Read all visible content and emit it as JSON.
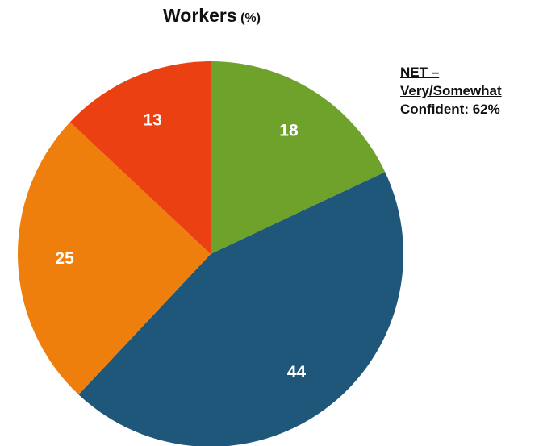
{
  "chart_data": {
    "type": "pie",
    "title": "Workers",
    "title_unit": "(%)",
    "slices": [
      {
        "value": 18,
        "label": "18",
        "color": "#6ea22b"
      },
      {
        "value": 44,
        "label": "44",
        "color": "#1f577b"
      },
      {
        "value": 25,
        "label": "25",
        "color": "#ef7f0c"
      },
      {
        "value": 13,
        "label": "13",
        "color": "#ea4012"
      }
    ],
    "start_angle": "12 o'clock",
    "direction": "clockwise",
    "annotation": {
      "lines": [
        "NET –",
        "Very/Somewhat",
        "Confident: 62%"
      ]
    }
  }
}
